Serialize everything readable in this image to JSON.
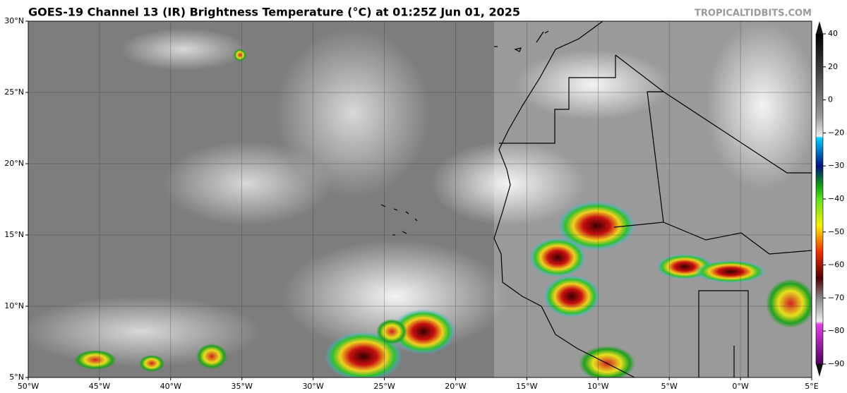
{
  "map": {
    "title": "GOES-19 Channel 13 (IR) Brightness Temperature (°C) at 01:25Z Jun 01, 2025",
    "watermark": "TROPICALTIDBITS.COM",
    "lat_labels": [
      "30°N",
      "25°N",
      "20°N",
      "15°N",
      "10°N",
      "5°N"
    ],
    "lon_labels": [
      "50°W",
      "45°W",
      "40°W",
      "35°W",
      "30°W",
      "25°W",
      "20°W",
      "15°W",
      "10°W",
      "5°W",
      "0°W",
      "5°E"
    ],
    "colorbar": {
      "ticks": [
        40,
        20,
        0,
        {
          "value": -20,
          "label": "−20"
        },
        {
          "value": -30,
          "label": "−30"
        },
        {
          "value": -40,
          "label": "−40"
        },
        {
          "value": -50,
          "label": "−50"
        },
        {
          "value": -60,
          "label": "−60"
        },
        {
          "value": -70,
          "label": "−70"
        },
        {
          "value": -80,
          "label": "−80"
        },
        {
          "value": -90,
          "label": "−90"
        }
      ]
    }
  }
}
